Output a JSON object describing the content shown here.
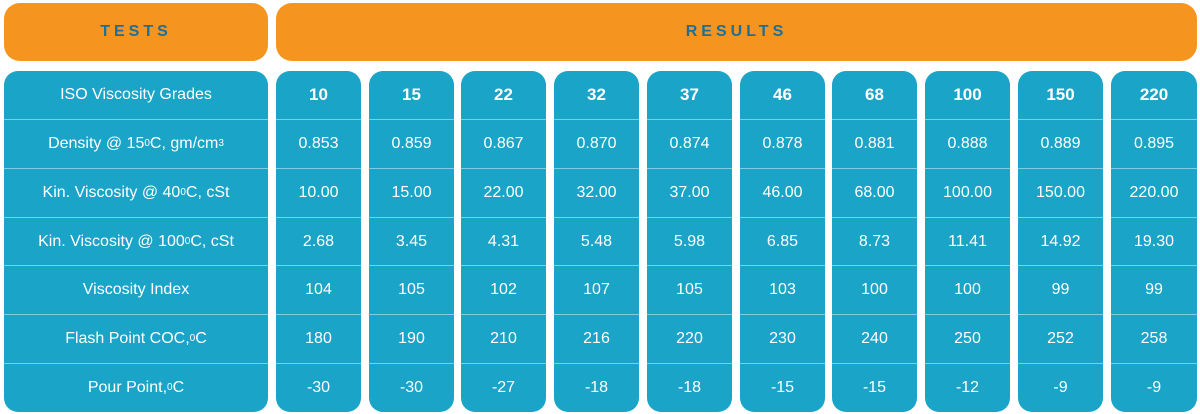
{
  "header": {
    "tests_label": "TESTS",
    "results_label": "RESULTS"
  },
  "tests": [
    {
      "pre": "ISO Viscosity Grades",
      "sup": "",
      "post": ""
    },
    {
      "pre": "Density @ 15 ",
      "sup": "0",
      "post": "C, gm/cm",
      "sup2": "3"
    },
    {
      "pre": "Kin. Viscosity @ 40 ",
      "sup": "0",
      "post": "C, cSt"
    },
    {
      "pre": "Kin. Viscosity @ 100 ",
      "sup": "0",
      "post": "C, cSt"
    },
    {
      "pre": "Viscosity Index",
      "sup": "",
      "post": ""
    },
    {
      "pre": "Flash Point COC, ",
      "sup": "0",
      "post": "C"
    },
    {
      "pre": "Pour Point, ",
      "sup": "0",
      "post": "C"
    }
  ],
  "results": [
    [
      "10",
      "0.853",
      "10.00",
      "2.68",
      "104",
      "180",
      "-30"
    ],
    [
      "15",
      "0.859",
      "15.00",
      "3.45",
      "105",
      "190",
      "-30"
    ],
    [
      "22",
      "0.867",
      "22.00",
      "4.31",
      "102",
      "210",
      "-27"
    ],
    [
      "32",
      "0.870",
      "32.00",
      "5.48",
      "107",
      "216",
      "-18"
    ],
    [
      "37",
      "0.874",
      "37.00",
      "5.98",
      "105",
      "220",
      "-18"
    ],
    [
      "46",
      "0.878",
      "46.00",
      "6.85",
      "103",
      "230",
      "-15"
    ],
    [
      "68",
      "0.881",
      "68.00",
      "8.73",
      "100",
      "240",
      "-15"
    ],
    [
      "100",
      "0.888",
      "100.00",
      "11.41",
      "100",
      "250",
      "-12"
    ],
    [
      "150",
      "0.889",
      "150.00",
      "14.92",
      "99",
      "252",
      "-9"
    ],
    [
      "220",
      "0.895",
      "220.00",
      "19.30",
      "99",
      "258",
      "-9"
    ]
  ]
}
